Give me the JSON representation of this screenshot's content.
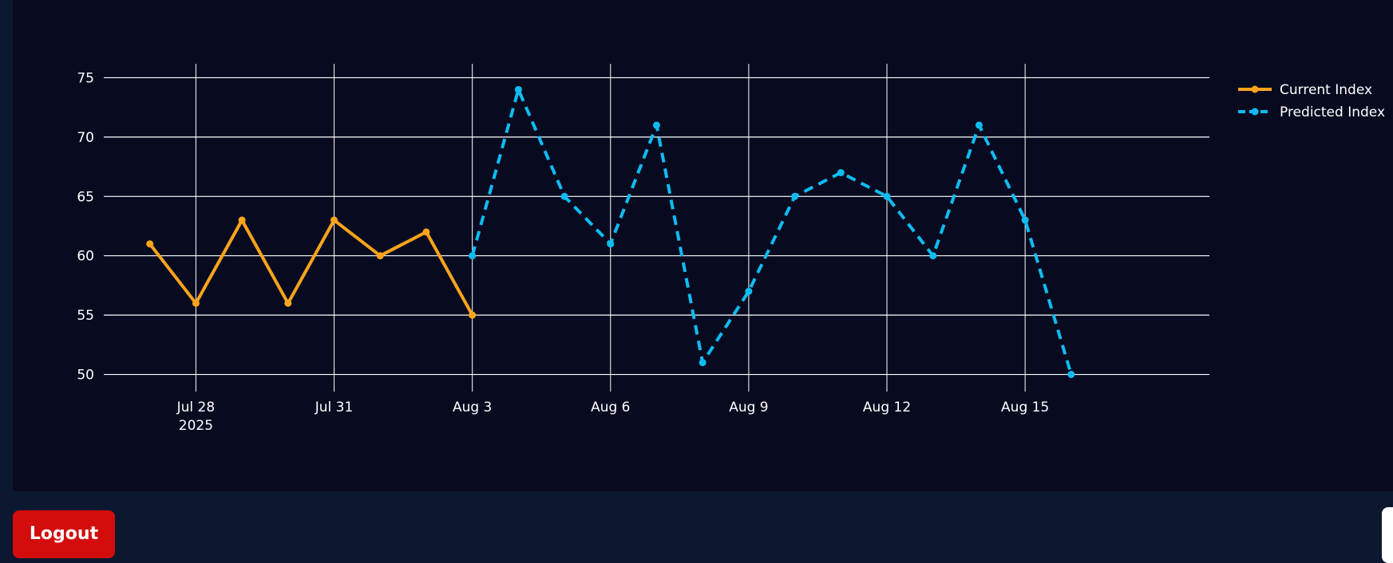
{
  "chart_data": {
    "type": "line",
    "x_start_date": "2025-07-27",
    "x_axis": {
      "type": "date",
      "range": [
        "2025-07-26",
        "2025-08-19"
      ],
      "ticks": [
        {
          "date": "2025-07-28",
          "label": "Jul 28",
          "sublabel": "2025"
        },
        {
          "date": "2025-07-31",
          "label": "Jul 31",
          "sublabel": ""
        },
        {
          "date": "2025-08-03",
          "label": "Aug 3",
          "sublabel": ""
        },
        {
          "date": "2025-08-06",
          "label": "Aug 6",
          "sublabel": ""
        },
        {
          "date": "2025-08-09",
          "label": "Aug 9",
          "sublabel": ""
        },
        {
          "date": "2025-08-12",
          "label": "Aug 12",
          "sublabel": ""
        },
        {
          "date": "2025-08-15",
          "label": "Aug 15",
          "sublabel": ""
        }
      ]
    },
    "y_axis": {
      "range": [
        49.5,
        75.5
      ],
      "ticks": [
        50,
        55,
        60,
        65,
        70,
        75
      ]
    },
    "grid": true,
    "legend_position": "top-right",
    "series": [
      {
        "name": "Current Index",
        "color": "#ffa41b",
        "dash": "solid",
        "marker": "circle",
        "points": [
          {
            "x": "2025-07-27",
            "y": 61
          },
          {
            "x": "2025-07-28",
            "y": 56
          },
          {
            "x": "2025-07-29",
            "y": 63
          },
          {
            "x": "2025-07-30",
            "y": 56
          },
          {
            "x": "2025-07-31",
            "y": 63
          },
          {
            "x": "2025-08-01",
            "y": 60
          },
          {
            "x": "2025-08-02",
            "y": 62
          },
          {
            "x": "2025-08-03",
            "y": 55
          }
        ]
      },
      {
        "name": "Predicted Index",
        "color": "#0ebcf2",
        "dash": "dashed",
        "marker": "circle",
        "points": [
          {
            "x": "2025-08-03",
            "y": 60
          },
          {
            "x": "2025-08-04",
            "y": 74
          },
          {
            "x": "2025-08-05",
            "y": 65
          },
          {
            "x": "2025-08-06",
            "y": 61
          },
          {
            "x": "2025-08-07",
            "y": 71
          },
          {
            "x": "2025-08-08",
            "y": 51
          },
          {
            "x": "2025-08-09",
            "y": 57
          },
          {
            "x": "2025-08-10",
            "y": 65
          },
          {
            "x": "2025-08-11",
            "y": 67
          },
          {
            "x": "2025-08-12",
            "y": 65
          },
          {
            "x": "2025-08-13",
            "y": 60
          },
          {
            "x": "2025-08-14",
            "y": 71
          },
          {
            "x": "2025-08-15",
            "y": 63
          },
          {
            "x": "2025-08-16",
            "y": 50
          }
        ]
      }
    ]
  },
  "actions": {
    "logout_label": "Logout"
  }
}
